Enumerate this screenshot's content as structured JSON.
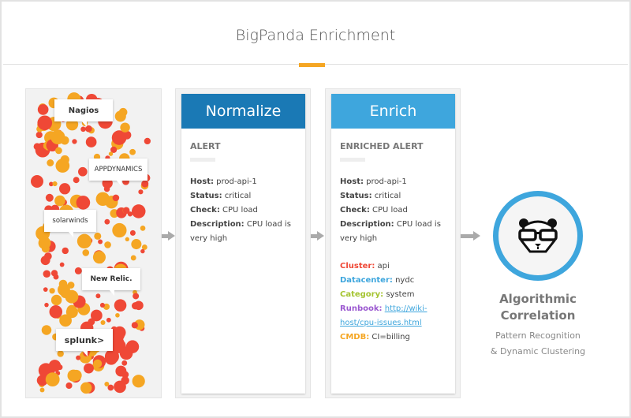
{
  "title": "BigPanda Enrichment",
  "colors": {
    "accent": "#f5a623",
    "normalize": "#1a79b5",
    "enrich": "#3ea6dd",
    "dot_red": "#ef4836",
    "dot_orange": "#f5a623",
    "cluster": "#ef4836",
    "datacenter": "#3ea6dd",
    "category": "#a5c431",
    "runbook": "#9b59d0",
    "cmdb": "#f5a623"
  },
  "sources": [
    "Nagios",
    "APPDYNAMICS",
    "solarwinds",
    "New Relic.",
    "splunk>"
  ],
  "normalize": {
    "header": "Normalize",
    "subtitle": "ALERT",
    "fields": [
      {
        "label": "Host:",
        "value": "prod-api-1"
      },
      {
        "label": "Status:",
        "value": "critical"
      },
      {
        "label": "Check:",
        "value": "CPU load"
      },
      {
        "label": "Description:",
        "value": "CPU load is very high"
      }
    ]
  },
  "enrich": {
    "header": "Enrich",
    "subtitle": "ENRICHED ALERT",
    "fields": [
      {
        "label": "Host:",
        "value": "prod-api-1"
      },
      {
        "label": "Status:",
        "value": "critical"
      },
      {
        "label": "Check:",
        "value": "CPU load"
      },
      {
        "label": "Description:",
        "value": "CPU load is very high"
      }
    ],
    "enrichments": [
      {
        "label": "Cluster:",
        "value": "api"
      },
      {
        "label": "Datacenter:",
        "value": "nydc"
      },
      {
        "label": "Category:",
        "value": "system"
      },
      {
        "label": "Runbook:",
        "value": "http://wiki-host/cpu-issues.html"
      },
      {
        "label": "CMDB:",
        "value": "CI=billing"
      }
    ]
  },
  "correlation": {
    "icon": "panda-glasses-icon",
    "title_line1": "Algorithmic",
    "title_line2": "Correlation",
    "sub_line1": "Pattern Recognition",
    "sub_line2": "& Dynamic Clustering"
  }
}
